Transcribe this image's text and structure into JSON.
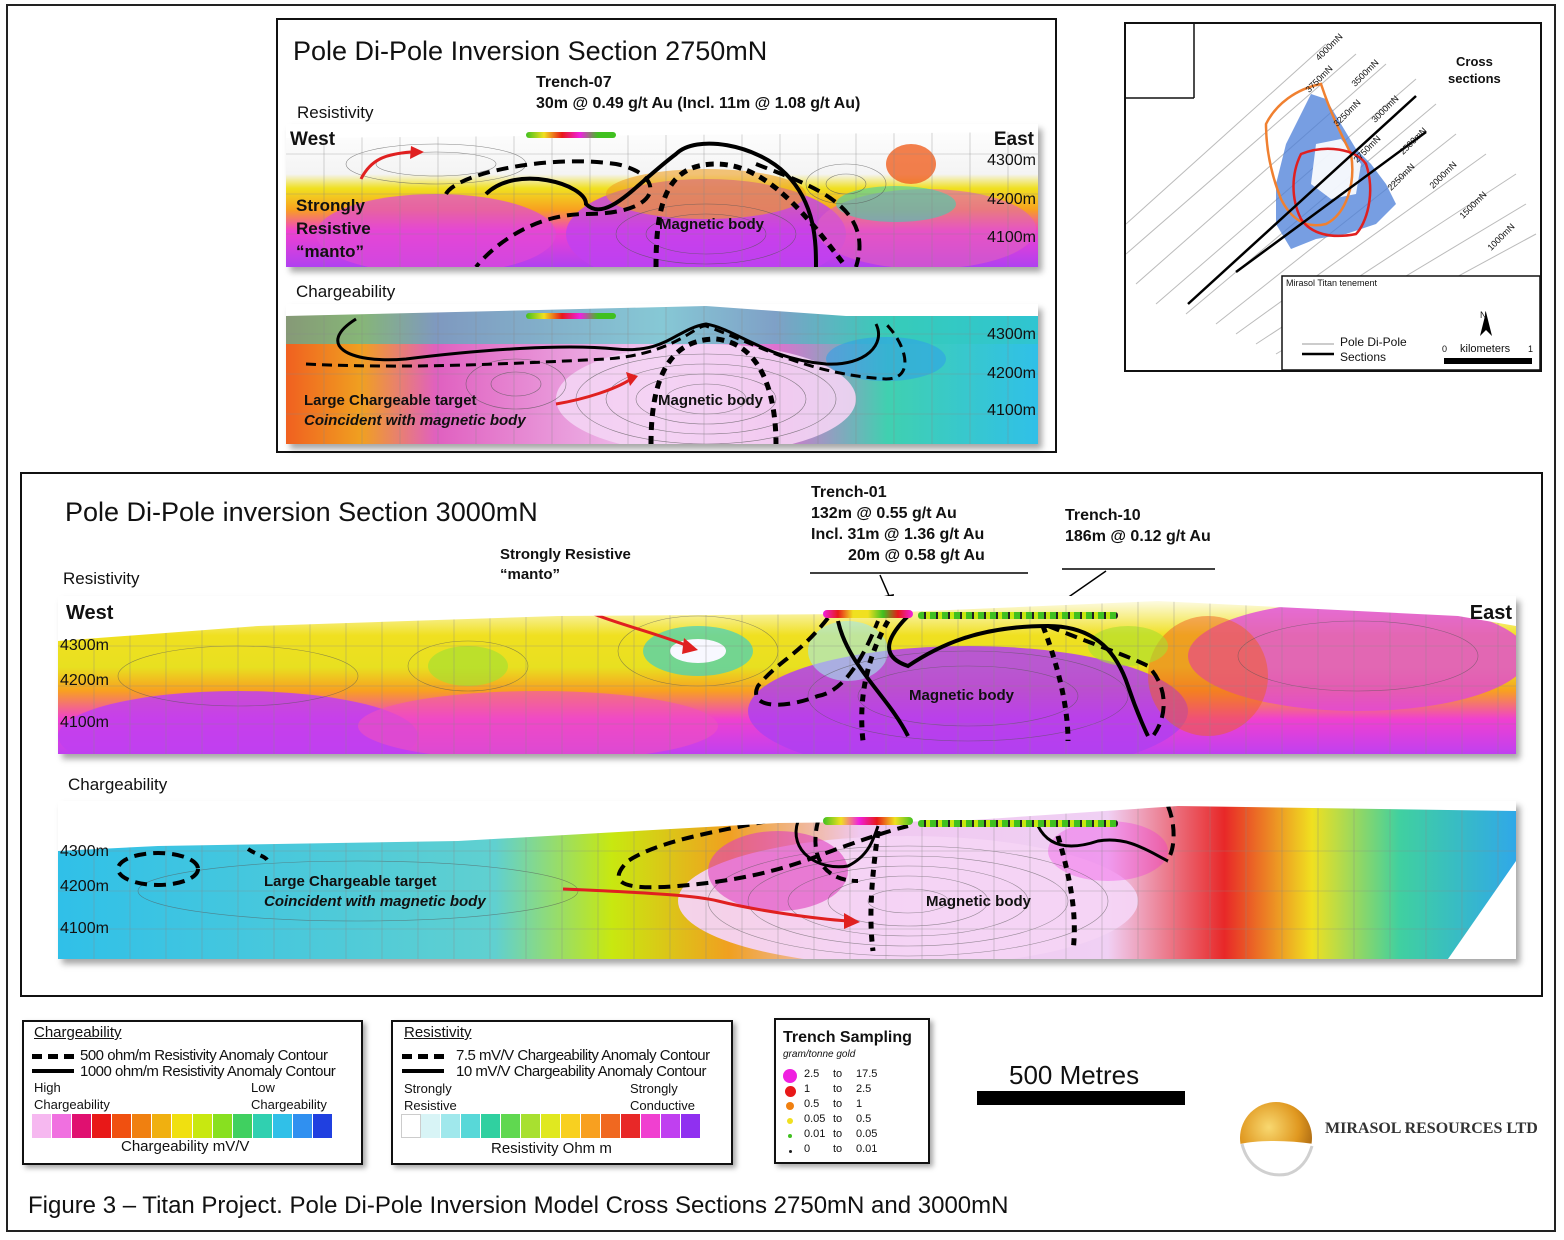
{
  "top_section": {
    "title": "Pole Di-Pole Inversion Section 2750mN",
    "trench_name": "Trench-07",
    "trench_result": "30m @ 0.49 g/t Au (Incl. 11m @ 1.08 g/t Au)",
    "resistivity_label": "Resistivity",
    "chargeability_label": "Chargeability",
    "west": "West",
    "east": "East",
    "elev": [
      "4300m",
      "4200m",
      "4100m"
    ],
    "resistive_note": [
      "Strongly",
      "Resistive",
      "“manto”"
    ],
    "magnetic_body": "Magnetic body",
    "chargeable_target": "Large Chargeable target",
    "coincident": "Coincident with magnetic body"
  },
  "bottom_section": {
    "title": "Pole Di-Pole inversion Section 3000mN",
    "resistivity_label": "Resistivity",
    "chargeability_label": "Chargeability",
    "west": "West",
    "east": "East",
    "elev": [
      "4300m",
      "4200m",
      "4100m"
    ],
    "resistive_note": [
      "Strongly Resistive",
      "“manto”"
    ],
    "trench01_name": "Trench-01",
    "trench01_lines": [
      "132m @ 0.55 g/t Au",
      "Incl. 31m @ 1.36 g/t Au",
      "20m @ 0.58 g/t Au"
    ],
    "trench10_name": "Trench-10",
    "trench10_result": "186m @ 0.12 g/t Au",
    "magnetic_body": "Magnetic body",
    "chargeable_target": "Large Chargeable target",
    "coincident": "Coincident with magnetic body"
  },
  "map": {
    "cross_sections": [
      "Cross",
      "sections"
    ],
    "lines": [
      "4000mN",
      "3750mN",
      "3500mN",
      "3250mN",
      "3000mN",
      "2750mN",
      "2500mN",
      "2250mN",
      "2000mN",
      "1500mN",
      "1000mN"
    ],
    "tenement": "Mirasol Titan tenement",
    "legend_line": [
      "Pole Di-Pole",
      "Sections"
    ],
    "north": "N",
    "scale_zero": "0",
    "scale_unit": "kilometers",
    "scale_one": "1"
  },
  "legend_chargeability": {
    "title": "Chargeability",
    "contour_dash": "500 ohm/m Resistivity Anomaly Contour",
    "contour_solid": "1000 ohm/m Resistivity Anomaly Contour",
    "left": [
      "High",
      "Chargeability"
    ],
    "right": [
      "Low",
      "Chargeability"
    ],
    "unit": "Chargeability mV/V",
    "colors": [
      "#f6b8f0",
      "#f070e0",
      "#e01070",
      "#e81818",
      "#f05010",
      "#f08010",
      "#f0b010",
      "#f0e010",
      "#c8e810",
      "#88e020",
      "#40d060",
      "#30d0b0",
      "#30c0e8",
      "#3090f0",
      "#2040e0"
    ]
  },
  "legend_resistivity": {
    "title": "Resistivity",
    "contour_dash": "7.5 mV/V Chargeability Anomaly Contour",
    "contour_solid": "10 mV/V Chargeability Anomaly Contour",
    "left": [
      "Strongly",
      "Resistive"
    ],
    "right": [
      "Strongly",
      "Conductive"
    ],
    "unit": "Resistivity Ohm m",
    "colors": [
      "#ffffff",
      "#d8f4f6",
      "#a0e8ec",
      "#58d8d8",
      "#30d0a0",
      "#60d850",
      "#a8e030",
      "#e0e820",
      "#f8d020",
      "#f8a020",
      "#f06820",
      "#e82828",
      "#f040d0",
      "#c040f0",
      "#9030f0"
    ]
  },
  "legend_trench": {
    "title": "Trench Sampling",
    "subtitle": "gram/tonne gold",
    "rows": [
      {
        "from": "2.5",
        "to": "to",
        "upper": "17.5",
        "color": "#f020e0"
      },
      {
        "from": "1",
        "to": "to",
        "upper": "2.5",
        "color": "#e81818"
      },
      {
        "from": "0.5",
        "to": "to",
        "upper": "1",
        "color": "#f08010"
      },
      {
        "from": "0.05",
        "to": "to",
        "upper": "0.5",
        "color": "#f0e020"
      },
      {
        "from": "0.01",
        "to": "to",
        "upper": "0.05",
        "color": "#40c020"
      },
      {
        "from": "0",
        "to": "to",
        "upper": "0.01",
        "color": "#202020"
      }
    ]
  },
  "scale": {
    "label": "500 Metres"
  },
  "logo": {
    "text": "MIRASOL RESOURCES LTD"
  },
  "caption": "Figure 3 – Titan Project. Pole Di-Pole Inversion Model Cross Sections 2750mN and 3000mN"
}
